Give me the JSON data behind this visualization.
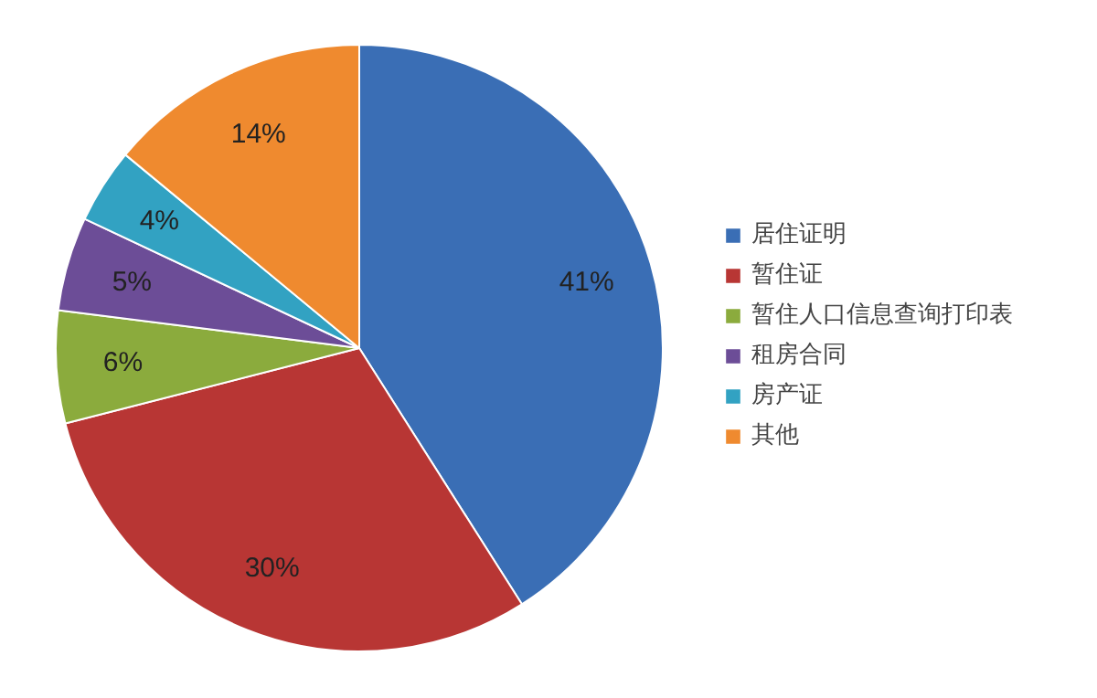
{
  "chart_data": {
    "type": "pie",
    "categories": [
      "居住证明",
      "暂住证",
      "暂住人口信息查询打印表",
      "租房合同",
      "房产证",
      "其他"
    ],
    "values": [
      41,
      30,
      6,
      5,
      4,
      14
    ],
    "colors": [
      "#3a6eb5",
      "#b83634",
      "#8bab3d",
      "#6c4d97",
      "#32a2c2",
      "#ef8a2f"
    ],
    "value_labels": [
      "41%",
      "30%",
      "6%",
      "5%",
      "4%",
      "14%"
    ],
    "legend": "right"
  }
}
